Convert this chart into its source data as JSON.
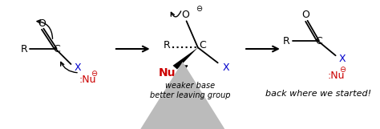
{
  "bg_color": "#ffffff",
  "black": "#000000",
  "red": "#cc0000",
  "blue": "#0000cc",
  "gray": "#bbbbbb",
  "label_weaker": "weaker base",
  "label_better": "better leaving group",
  "label_back": "back where we started!"
}
